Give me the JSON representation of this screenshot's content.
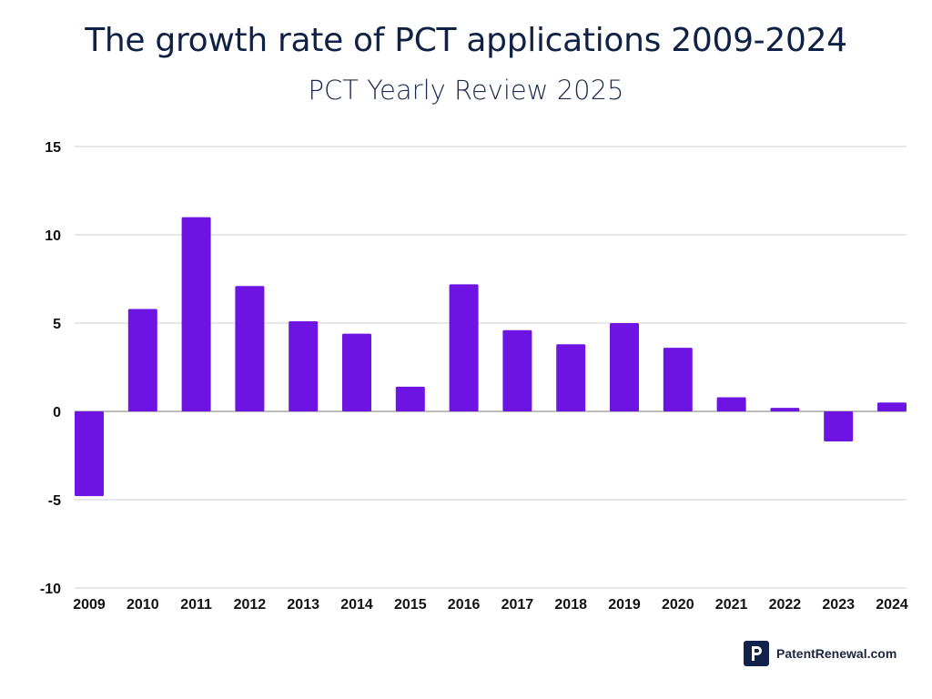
{
  "chart_data": {
    "type": "bar",
    "title": "The growth rate of PCT applications 2009-2024",
    "subtitle": "PCT Yearly Review 2025",
    "xlabel": "",
    "ylabel": "",
    "categories": [
      "2009",
      "2010",
      "2011",
      "2012",
      "2013",
      "2014",
      "2015",
      "2016",
      "2017",
      "2018",
      "2019",
      "2020",
      "2021",
      "2022",
      "2023",
      "2024"
    ],
    "values": [
      -4.8,
      5.8,
      11.0,
      7.1,
      5.1,
      4.4,
      1.4,
      7.2,
      4.6,
      3.8,
      5.0,
      3.6,
      0.8,
      0.2,
      -1.7,
      0.5
    ],
    "ylim": [
      -10,
      15
    ],
    "yticks": [
      15,
      10,
      5,
      0,
      -5,
      -10
    ],
    "grid": true,
    "bar_color": "#6d14e3"
  },
  "branding": {
    "text": "PatentRenewal.com",
    "logo_color": "#13224a"
  }
}
